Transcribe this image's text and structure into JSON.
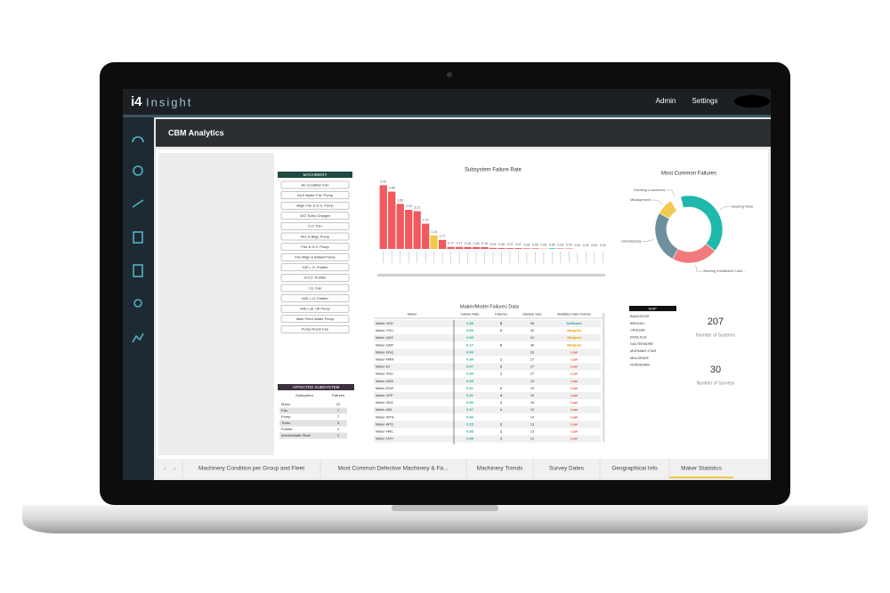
{
  "header": {
    "logo_mark": "i4",
    "logo_text": "Insight",
    "menu": [
      "Admin",
      "Settings"
    ]
  },
  "page_title": "CBM Analytics",
  "machinery_slicer": {
    "title": "MACHINERY",
    "items": [
      "Air Condition Fan",
      "AUX Boiler F.W. Pump",
      "Bilge Fire & G.S. Pump",
      "D/G Turbo Charger",
      "F.O. Fan",
      "Fire & Bilge Pump",
      "Fire & G.S. Pump",
      "Fire Bilge & Ballast Pump",
      "G/E L.O. Purifier",
      "H.F.O. Purifier",
      "I.G. Fan",
      "M/E L.O. Purifier",
      "M/E Lub. Oil Pump",
      "Main Feed Water Pump",
      "Pump Room Fan"
    ]
  },
  "subsystem_table": {
    "title": "AFFECTED SUBSYSTEM",
    "columns": [
      "Subsystem",
      "Failures"
    ],
    "rows": [
      [
        "Motor",
        "22"
      ],
      [
        "Fan",
        "7"
      ],
      [
        "Pump",
        "7"
      ],
      [
        "Turbo",
        "3"
      ],
      [
        "Purifier",
        "2"
      ],
      [
        "Intermediate Shaft",
        "1"
      ]
    ]
  },
  "chart_data": [
    {
      "type": "bar",
      "title": "Subsystem Failure Rate",
      "categories": [
        null,
        null,
        null,
        null,
        null,
        null,
        null,
        null,
        null,
        null,
        null,
        null,
        null,
        null,
        null,
        null,
        null,
        null,
        null,
        null,
        null,
        null,
        null,
        null,
        null,
        null,
        null
      ],
      "values": [
        5.42,
        4.88,
        3.83,
        3.33,
        3.21,
        2.15,
        1.15,
        0.77,
        0.17,
        0.17,
        0.16,
        0.16,
        0.16,
        0.09,
        0.08,
        0.07,
        0.07,
        0.05,
        0.05,
        0.05,
        0.05,
        0.04,
        0.04,
        0,
        0,
        0,
        0
      ],
      "value_labels": [
        "5.42",
        "4.88",
        "3.83",
        "3.33",
        "3.21",
        "2.15",
        "1.15",
        "0.77",
        "0.17",
        "0.17",
        "0.16",
        "0.16",
        "0.16",
        "0.09",
        "0.08",
        "0.07",
        "0.07",
        "0.05",
        "0.05",
        "0.05",
        "0.05",
        "0.04",
        "0.04",
        "0.00",
        "0.00",
        "0.00",
        "0.00"
      ],
      "colors": [
        "#f0595d",
        "#f0595d",
        "#f0595d",
        "#f0595d",
        "#f0595d",
        "#f0595d",
        "#f2c94c",
        "#f0595d",
        "#f0595d",
        "#f0595d",
        "#f0595d",
        "#f0595d",
        "#f0595d",
        "#f0595d",
        "#f0595d",
        "#f0595d",
        "#f0595d",
        "#f0595d",
        "#f0595d",
        "#f2c94c",
        "#1fb8ac",
        "#f0595d",
        "#f0595d",
        "#f0595d",
        "#f0595d",
        "#f0595d",
        "#f0595d"
      ],
      "ylim": [
        0,
        5.6
      ]
    },
    {
      "type": "pie",
      "title": "Most Common Failures",
      "categories": [
        "Bearing Wear",
        "Bearing Insufficient Lubri...",
        "Unbalancing",
        "Misalignment",
        "Rotating Looseness"
      ],
      "values": [
        40,
        22,
        25,
        8,
        5
      ],
      "colors": [
        "#1fb8ac",
        "#f27a7d",
        "#6e8f9c",
        "#f2c94c",
        "#ffffff"
      ]
    }
  ],
  "maker_table": {
    "title": "Maker/Model Failures Data",
    "columns": [
      "Maker",
      "Failure Rate",
      "Failures",
      "Sample Size",
      "Statistics Data Volume"
    ],
    "rows": [
      [
        "Maker-VKD",
        "0.05",
        "5",
        "99",
        "Sufficient"
      ],
      [
        "Maker-YRU",
        "0.05",
        "2",
        "42",
        "Marginal"
      ],
      [
        "Maker-QAS",
        "0.00",
        null,
        "41",
        "Marginal"
      ],
      [
        "Maker-QNP",
        "0.17",
        "6",
        "36",
        "Marginal"
      ],
      [
        "Maker-SNQ",
        "0.00",
        null,
        "28",
        "Low"
      ],
      [
        "Maker-NRM",
        "0.04",
        "1",
        "27",
        "Low"
      ],
      [
        "Maker-DJ",
        "0.07",
        "2",
        "27",
        "Low"
      ],
      [
        "Maker-ZNU",
        "0.04",
        "1",
        "27",
        "Low"
      ],
      [
        "Maker-DMX",
        "0.00",
        null,
        "24",
        "Low"
      ],
      [
        "Maker-RJW",
        "0.11",
        "2",
        "19",
        "Low"
      ],
      [
        "Maker-VKP",
        "0.21",
        "4",
        "19",
        "Low"
      ],
      [
        "Maker-SDA",
        "0.06",
        "1",
        "16",
        "Low"
      ],
      [
        "Maker-ABL",
        "0.07",
        "1",
        "15",
        "Low"
      ],
      [
        "Maker-WTN",
        "0.00",
        null,
        "14",
        "Low"
      ],
      [
        "Maker-APQ",
        "0.15",
        "2",
        "13",
        "Low"
      ],
      [
        "Maker-HRC",
        "0.08",
        "1",
        "13",
        "Low"
      ],
      [
        "Maker-UVH",
        "0.08",
        "1",
        "12",
        "Low"
      ]
    ],
    "status_colors": {
      "Sufficient": "#1aa39a",
      "Marginal": "#e0a000",
      "Low": "#e8453c"
    },
    "rate_color": "#1aa39a"
  },
  "ship_slicer": {
    "title": "SHIP",
    "items": [
      "BANCROSS",
      "BREDAH",
      "CRUIZER",
      "EMULSUS",
      "GALTEEMORE",
      "MORNING STAR",
      "MULGRAVE",
      "NORSEMAN"
    ]
  },
  "cards": [
    {
      "value": "207",
      "label": "Number of Systems"
    },
    {
      "value": "30",
      "label": "Number of Surveys"
    }
  ],
  "tabs": {
    "items": [
      "Machinery Condition per Group and Fleet",
      "Most Common Defective Machinery & Fa...",
      "Machinery Trends",
      "Survey Dates",
      "Geographical Info",
      "Maker Statistics"
    ],
    "active": 5
  }
}
